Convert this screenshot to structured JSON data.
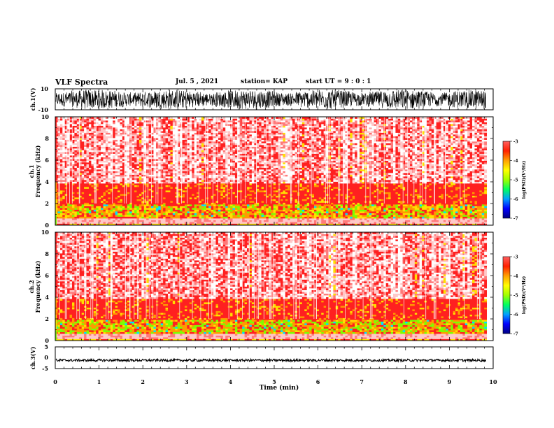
{
  "header": {
    "title": "VLF Spectra",
    "date": "Jul. 5 , 2021",
    "station": "station= KAP",
    "start": "start UT = 9 : 0 : 1"
  },
  "colors": {
    "spectrum_scale": [
      "#000080",
      "#0000ff",
      "#00a0ff",
      "#00ff60",
      "#a0ff00",
      "#ffff00",
      "#ffa000",
      "#ff2000",
      "#ff6060",
      "#ffd8d8",
      "#ffffff"
    ],
    "waveform": "#000000"
  },
  "chart_data": [
    {
      "type": "line",
      "name": "waveform-ch1",
      "ylabel": "ch.1(V)",
      "ylim": [
        -10,
        10
      ],
      "yticks": [
        "10",
        "-10"
      ],
      "xlim": [
        0,
        10
      ],
      "description_values": "dense noisy waveform spanning roughly -9 to 9 V over 0 to 9.8 min"
    },
    {
      "type": "heatmap",
      "name": "spectrogram-ch1",
      "ylabel": "ch.1\nFrequency (kHz)",
      "ylim": [
        0,
        10
      ],
      "yticks": [
        "0",
        "2",
        "4",
        "6",
        "8",
        "10"
      ],
      "xlim": [
        0,
        10
      ],
      "data_end_min": 9.85,
      "colorbar": {
        "label": "log(PSD)(V²/Hz)",
        "range": [
          -7,
          -3
        ],
        "ticks": [
          "-3",
          "-4",
          "-5",
          "-6",
          "-7"
        ]
      }
    },
    {
      "type": "heatmap",
      "name": "spectrogram-ch2",
      "ylabel": "ch.2\nFrequency (kHz)",
      "ylim": [
        0,
        10
      ],
      "yticks": [
        "0",
        "2",
        "4",
        "6",
        "8",
        "10"
      ],
      "xlim": [
        0,
        10
      ],
      "data_end_min": 9.85,
      "colorbar": {
        "label": "log(PSD)(V²/Hz)",
        "range": [
          -7,
          -3
        ],
        "ticks": [
          "-3",
          "-4",
          "-5",
          "-6",
          "-7"
        ]
      }
    },
    {
      "type": "line",
      "name": "waveform-ch3",
      "ylabel": "ch.3(V)",
      "ylim": [
        -5,
        5
      ],
      "yticks": [
        "5",
        "0",
        "-5"
      ],
      "xlim": [
        0,
        10
      ],
      "level_v": -1.2
    }
  ],
  "xaxis": {
    "label": "Time (min)",
    "ticks": [
      "0",
      "1",
      "2",
      "3",
      "4",
      "5",
      "6",
      "7",
      "8",
      "9",
      "10"
    ]
  },
  "labels": {
    "ch1_wave": "ch.1(V)",
    "ch1_spec_a": "ch.1",
    "ch1_spec_b": "Frequency (kHz)",
    "ch2_spec_a": "ch.2",
    "ch2_spec_b": "Frequency (kHz)",
    "ch3_wave": "ch.3(V)",
    "cbar": "log(PSD)(V²/Hz)"
  }
}
